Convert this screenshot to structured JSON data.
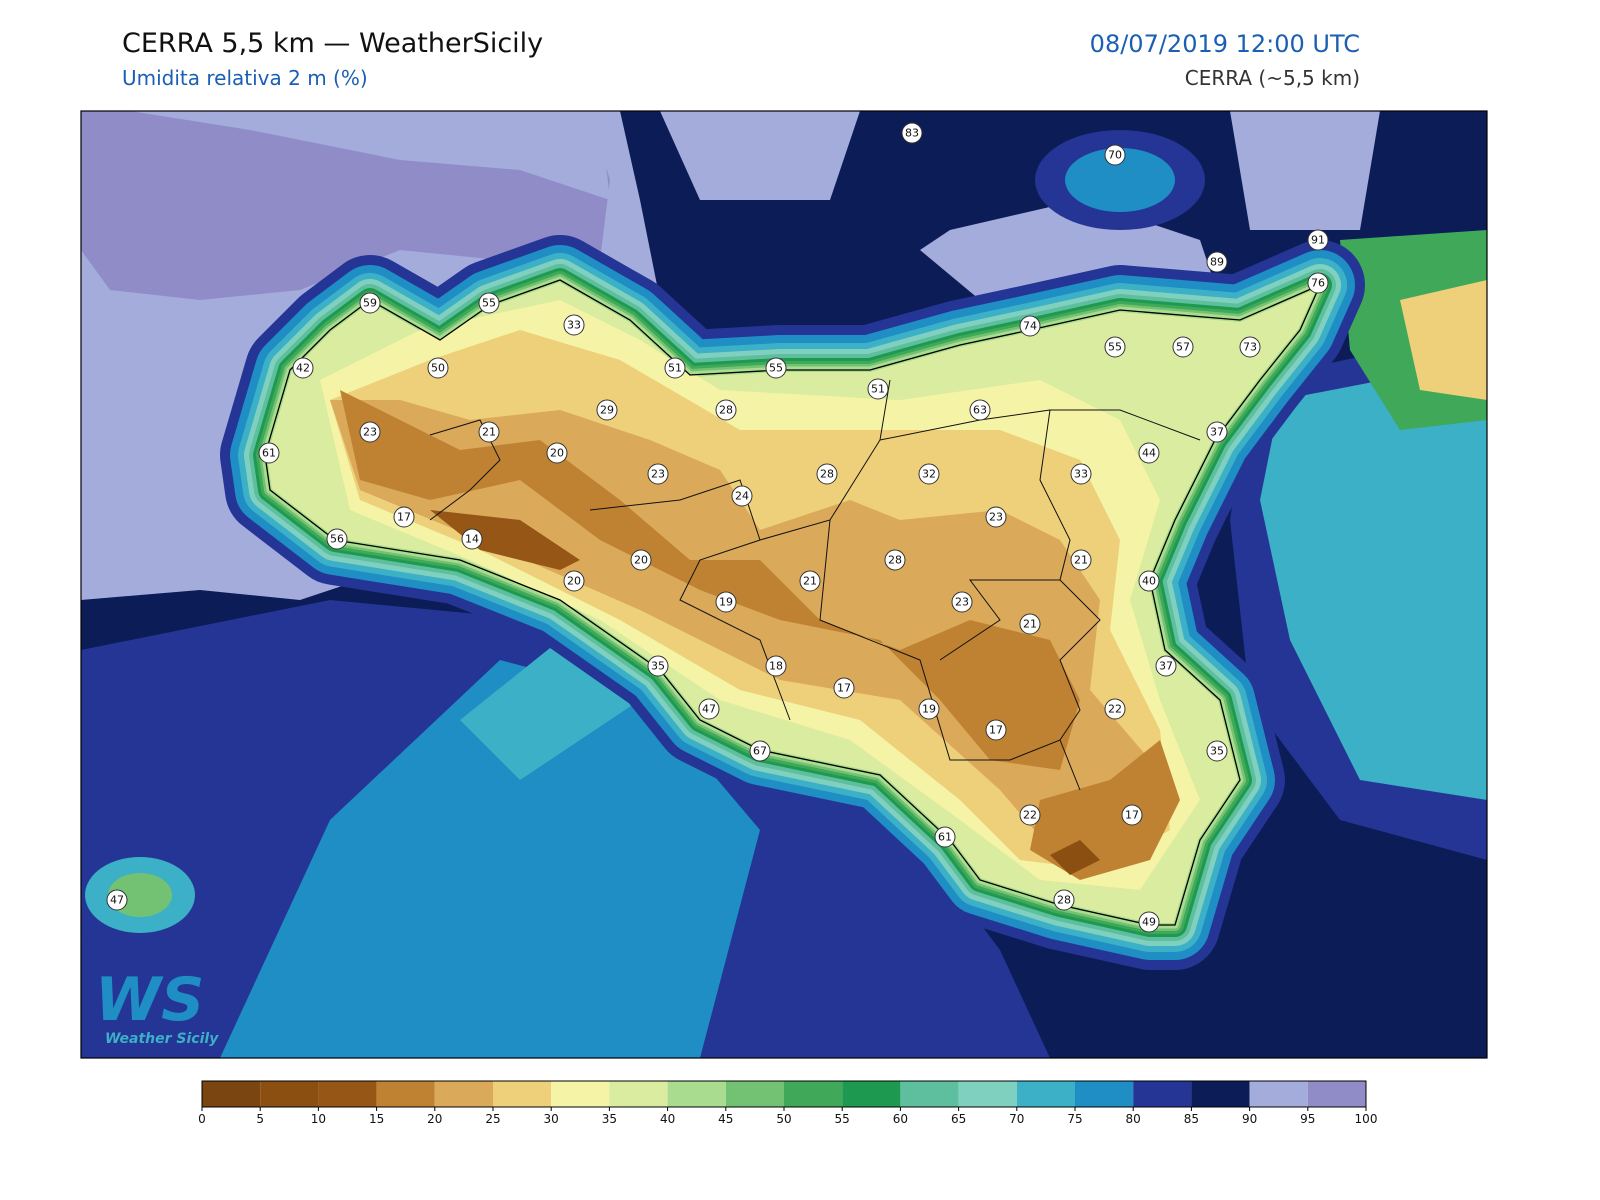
{
  "header": {
    "title": "CERRA 5,5 km — WeatherSicily",
    "subtitle": "Umidita relativa 2 m (%)",
    "datetime": "08/07/2019 12:00 UTC",
    "model": "CERRA (~5,5 km)"
  },
  "stations": [
    83,
    70,
    91,
    89,
    76,
    59,
    55,
    33,
    74,
    55,
    57,
    73,
    42,
    50,
    51,
    55,
    51,
    29,
    28,
    63,
    23,
    21,
    37,
    61,
    20,
    44,
    23,
    28,
    32,
    33,
    24,
    17,
    23,
    56,
    14,
    20,
    28,
    21,
    20,
    21,
    40,
    19,
    23,
    21,
    35,
    18,
    37,
    17,
    47,
    19,
    22,
    17,
    67,
    35,
    22,
    17,
    61,
    47,
    28,
    49
  ],
  "colorbar": {
    "ticks": [
      0,
      5,
      10,
      15,
      20,
      25,
      30,
      35,
      40,
      45,
      50,
      55,
      60,
      65,
      70,
      75,
      80,
      85,
      90,
      95,
      100
    ],
    "colors": [
      "#7a4510",
      "#8c4f12",
      "#965716",
      "#bf8232",
      "#daa95a",
      "#eecf7a",
      "#f5f3a5",
      "#d9ec9f",
      "#a9dc8e",
      "#73c273",
      "#3fa859",
      "#1d9a50",
      "#5ebf9f",
      "#80d0bf",
      "#3bb0c6",
      "#1e8ec4",
      "#243595",
      "#0c1c56",
      "#a4acdc",
      "#8f8cc8"
    ]
  },
  "logo": {
    "text": "Weather Sicily"
  }
}
